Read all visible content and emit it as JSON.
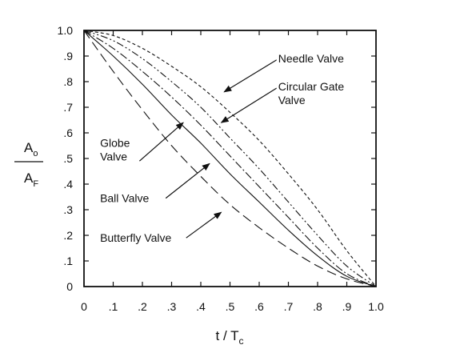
{
  "chart_data": {
    "type": "line",
    "xlabel": {
      "main": "t / T",
      "sub": "c"
    },
    "ylabel": {
      "numerator_main": "A",
      "numerator_sub": "o",
      "denominator_main": "A",
      "denominator_sub": "F"
    },
    "xlim": [
      0,
      1
    ],
    "ylim": [
      0,
      1
    ],
    "xticks": [
      {
        "v": 0,
        "label": "0"
      },
      {
        "v": 0.1,
        "label": ".1"
      },
      {
        "v": 0.2,
        "label": ".2"
      },
      {
        "v": 0.3,
        "label": ".3"
      },
      {
        "v": 0.4,
        "label": ".4"
      },
      {
        "v": 0.5,
        "label": ".5"
      },
      {
        "v": 0.6,
        "label": ".6"
      },
      {
        "v": 0.7,
        "label": ".7"
      },
      {
        "v": 0.8,
        "label": ".8"
      },
      {
        "v": 0.9,
        "label": ".9"
      },
      {
        "v": 1.0,
        "label": "1.0"
      }
    ],
    "yticks": [
      {
        "v": 0,
        "label": "0"
      },
      {
        "v": 0.1,
        "label": ".1"
      },
      {
        "v": 0.2,
        "label": ".2"
      },
      {
        "v": 0.3,
        "label": ".3"
      },
      {
        "v": 0.4,
        "label": ".4"
      },
      {
        "v": 0.5,
        "label": ".5"
      },
      {
        "v": 0.6,
        "label": ".6"
      },
      {
        "v": 0.7,
        "label": ".7"
      },
      {
        "v": 0.8,
        "label": ".8"
      },
      {
        "v": 0.9,
        "label": ".9"
      },
      {
        "v": 1.0,
        "label": "1.0"
      }
    ],
    "grid": false,
    "series": [
      {
        "name": "Needle Valve",
        "dash": "4 3",
        "x": [
          0,
          0.1,
          0.2,
          0.3,
          0.4,
          0.5,
          0.6,
          0.7,
          0.8,
          0.9,
          1.0
        ],
        "y": [
          1.0,
          0.98,
          0.93,
          0.86,
          0.78,
          0.68,
          0.57,
          0.44,
          0.3,
          0.14,
          0
        ]
      },
      {
        "name": "Circular Gate Valve",
        "dash": "9 3 2 3 2 3",
        "x": [
          0,
          0.1,
          0.2,
          0.3,
          0.4,
          0.5,
          0.6,
          0.7,
          0.8,
          0.9,
          1.0
        ],
        "y": [
          1.0,
          0.96,
          0.89,
          0.8,
          0.7,
          0.58,
          0.46,
          0.33,
          0.2,
          0.08,
          0
        ]
      },
      {
        "name": "Globe Valve",
        "dash": "10 3 2 3",
        "x": [
          0,
          0.1,
          0.2,
          0.3,
          0.4,
          0.5,
          0.6,
          0.7,
          0.8,
          0.9,
          1.0
        ],
        "y": [
          1.0,
          0.93,
          0.84,
          0.74,
          0.63,
          0.51,
          0.39,
          0.27,
          0.15,
          0.05,
          0
        ]
      },
      {
        "name": "Ball Valve",
        "dash": "",
        "x": [
          0,
          0.1,
          0.2,
          0.3,
          0.4,
          0.5,
          0.6,
          0.7,
          0.8,
          0.9,
          1.0
        ],
        "y": [
          1.0,
          0.9,
          0.79,
          0.67,
          0.56,
          0.44,
          0.33,
          0.22,
          0.12,
          0.04,
          0
        ]
      },
      {
        "name": "Butterfly Valve",
        "dash": "12 6",
        "x": [
          0,
          0.1,
          0.2,
          0.3,
          0.4,
          0.5,
          0.6,
          0.7,
          0.8,
          0.9,
          1.0
        ],
        "y": [
          1.0,
          0.84,
          0.69,
          0.55,
          0.43,
          0.32,
          0.23,
          0.15,
          0.08,
          0.03,
          0
        ]
      }
    ],
    "annotations": [
      {
        "lines": [
          "Needle Valve"
        ],
        "anchor": "start",
        "tx": 0.665,
        "ty": 0.875,
        "ax1": 0.66,
        "ay1": 0.885,
        "ax2": 0.48,
        "ay2": 0.76
      },
      {
        "lines": [
          "Circular Gate",
          "Valve"
        ],
        "anchor": "start",
        "tx": 0.665,
        "ty": 0.765,
        "ax1": 0.66,
        "ay1": 0.775,
        "ax2": 0.47,
        "ay2": 0.64
      },
      {
        "lines": [
          "Globe",
          "Valve"
        ],
        "anchor": "start",
        "tx": 0.055,
        "ty": 0.545,
        "ax1": 0.19,
        "ay1": 0.49,
        "ax2": 0.34,
        "ay2": 0.64
      },
      {
        "lines": [
          "Ball Valve"
        ],
        "anchor": "start",
        "tx": 0.055,
        "ty": 0.33,
        "ax1": 0.28,
        "ay1": 0.345,
        "ax2": 0.43,
        "ay2": 0.48
      },
      {
        "lines": [
          "Butterfly Valve"
        ],
        "anchor": "start",
        "tx": 0.055,
        "ty": 0.175,
        "ax1": 0.35,
        "ay1": 0.19,
        "ax2": 0.47,
        "ay2": 0.29
      }
    ]
  }
}
